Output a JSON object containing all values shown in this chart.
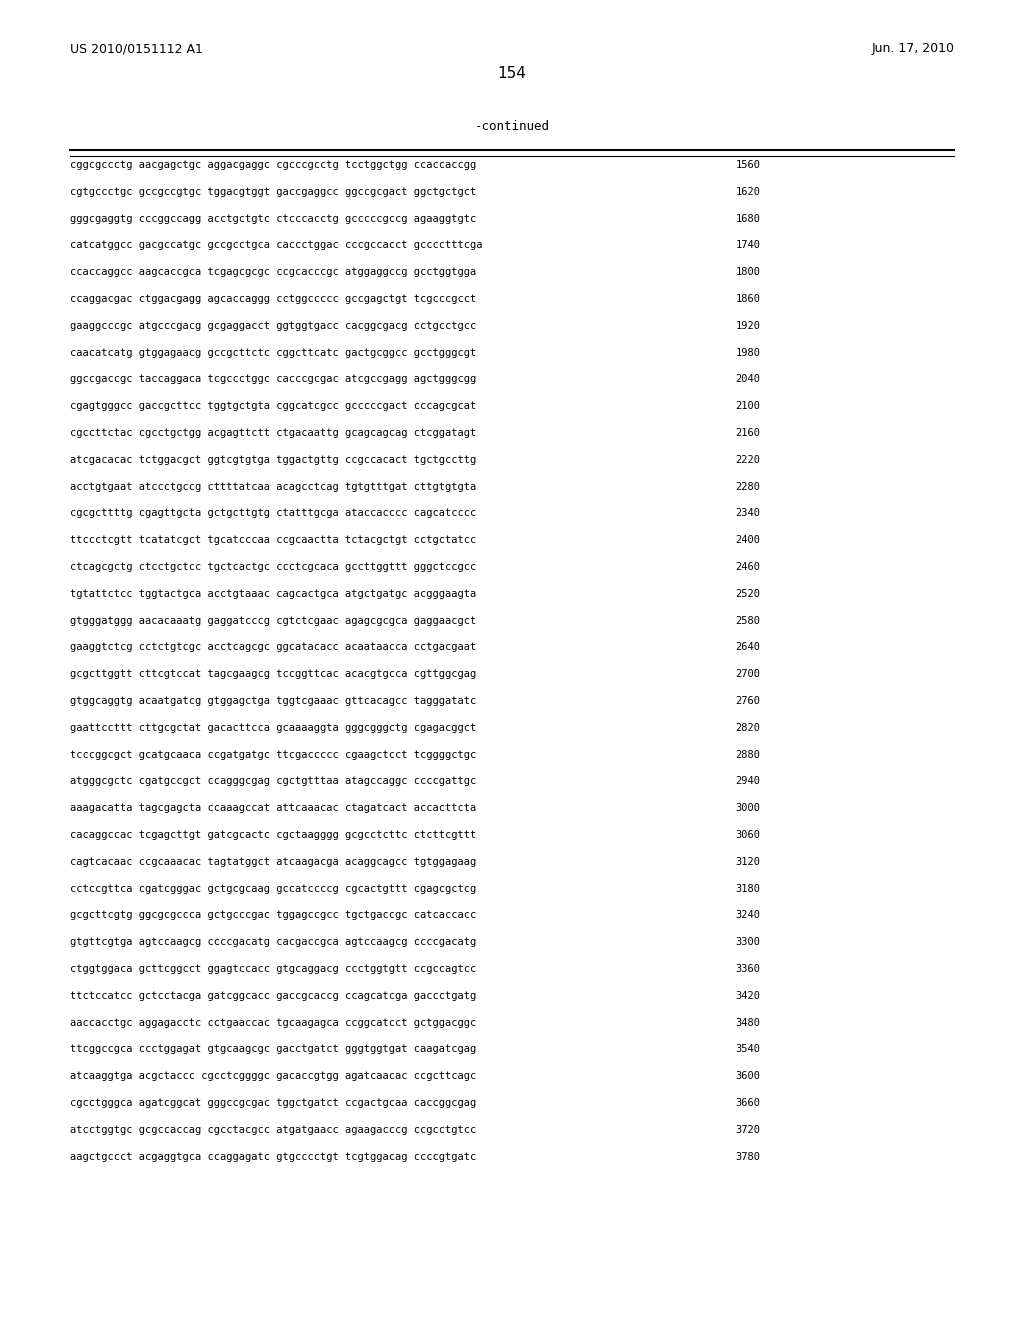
{
  "header_left": "US 2010/0151112 A1",
  "header_right": "Jun. 17, 2010",
  "page_number": "154",
  "continued_label": "-continued",
  "background_color": "#ffffff",
  "text_color": "#000000",
  "sequence_lines": [
    {
      "seq": "cggcgccctg aacgagctgc aggacgaggc cgcccgcctg tcctggctgg ccaccaccgg",
      "num": "1560"
    },
    {
      "seq": "cgtgccctgc gccgccgtgc tggacgtggt gaccgaggcc ggccgcgact ggctgctgct",
      "num": "1620"
    },
    {
      "seq": "gggcgaggtg cccggccagg acctgctgtc ctcccacctg gcccccgccg agaaggtgtc",
      "num": "1680"
    },
    {
      "seq": "catcatggcc gacgccatgc gccgcctgca caccctggac cccgccacct gcccctttcga",
      "num": "1740"
    },
    {
      "seq": "ccaccaggcc aagcaccgca tcgagcgcgc ccgcacccgc atggaggccg gcctggtgga",
      "num": "1800"
    },
    {
      "seq": "ccaggacgac ctggacgagg agcaccaggg cctggccccc gccgagctgt tcgcccgcct",
      "num": "1860"
    },
    {
      "seq": "gaaggcccgc atgcccgacg gcgaggacct ggtggtgacc cacggcgacg cctgcctgcc",
      "num": "1920"
    },
    {
      "seq": "caacatcatg gtggagaacg gccgcttctc cggcttcatc gactgcggcc gcctgggcgt",
      "num": "1980"
    },
    {
      "seq": "ggccgaccgc taccaggaca tcgccctggc cacccgcgac atcgccgagg agctgggcgg",
      "num": "2040"
    },
    {
      "seq": "cgagtgggcc gaccgcttcc tggtgctgta cggcatcgcc gcccccgact cccagcgcat",
      "num": "2100"
    },
    {
      "seq": "cgccttctac cgcctgctgg acgagttctt ctgacaattg gcagcagcag ctcggatagt",
      "num": "2160"
    },
    {
      "seq": "atcgacacac tctggacgct ggtcgtgtga tggactgttg ccgccacact tgctgccttg",
      "num": "2220"
    },
    {
      "seq": "acctgtgaat atccctgccg cttttatcaa acagcctcag tgtgtttgat cttgtgtgta",
      "num": "2280"
    },
    {
      "seq": "cgcgcttttg cgagttgcta gctgcttgtg ctatttgcga ataccacccc cagcatcccc",
      "num": "2340"
    },
    {
      "seq": "ttccctcgtt tcatatcgct tgcatcccaa ccgcaactta tctacgctgt cctgctatcc",
      "num": "2400"
    },
    {
      "seq": "ctcagcgctg ctcctgctcc tgctcactgc ccctcgcaca gccttggttt gggctccgcc",
      "num": "2460"
    },
    {
      "seq": "tgtattctcc tggtactgca acctgtaaac cagcactgca atgctgatgc acgggaagta",
      "num": "2520"
    },
    {
      "seq": "gtgggatggg aacacaaatg gaggatcccg cgtctcgaac agagcgcgca gaggaacgct",
      "num": "2580"
    },
    {
      "seq": "gaaggtctcg cctctgtcgc acctcagcgc ggcatacacc acaataacca cctgacgaat",
      "num": "2640"
    },
    {
      "seq": "gcgcttggtt cttcgtccat tagcgaagcg tccggttcac acacgtgcca cgttggcgag",
      "num": "2700"
    },
    {
      "seq": "gtggcaggtg acaatgatcg gtggagctga tggtcgaaac gttcacagcc tagggatatc",
      "num": "2760"
    },
    {
      "seq": "gaattccttt cttgcgctat gacacttcca gcaaaaggta gggcgggctg cgagacggct",
      "num": "2820"
    },
    {
      "seq": "tcccggcgct gcatgcaaca ccgatgatgc ttcgaccccc cgaagctcct tcggggctgc",
      "num": "2880"
    },
    {
      "seq": "atgggcgctc cgatgccgct ccagggcgag cgctgtttaa atagccaggc ccccgattgc",
      "num": "2940"
    },
    {
      "seq": "aaagacatta tagcgagcta ccaaagccat attcaaacac ctagatcact accacttcta",
      "num": "3000"
    },
    {
      "seq": "cacaggccac tcgagcttgt gatcgcactc cgctaagggg gcgcctcttc ctcttcgttt",
      "num": "3060"
    },
    {
      "seq": "cagtcacaac ccgcaaacac tagtatggct atcaagacga acaggcagcc tgtggagaag",
      "num": "3120"
    },
    {
      "seq": "cctccgttca cgatcgggac gctgcgcaag gccatccccg cgcactgttt cgagcgctcg",
      "num": "3180"
    },
    {
      "seq": "gcgcttcgtg ggcgcgccca gctgcccgac tggagccgcc tgctgaccgc catcaccacc",
      "num": "3240"
    },
    {
      "seq": "gtgttcgtga agtccaagcg ccccgacatg cacgaccgca agtccaagcg ccccgacatg",
      "num": "3300"
    },
    {
      "seq": "ctggtggaca gcttcggcct ggagtccacc gtgcaggacg ccctggtgtt ccgccagtcc",
      "num": "3360"
    },
    {
      "seq": "ttctccatcc gctcctacga gatcggcacc gaccgcaccg ccagcatcga gaccctgatg",
      "num": "3420"
    },
    {
      "seq": "aaccacctgc aggagacctc cctgaaccac tgcaagagca ccggcatcct gctggacggc",
      "num": "3480"
    },
    {
      "seq": "ttcggccgca ccctggagat gtgcaagcgc gacctgatct gggtggtgat caagatcgag",
      "num": "3540"
    },
    {
      "seq": "atcaaggtga acgctaccc cgcctcggggc gacaccgtgg agatcaacac ccgcttcagc",
      "num": "3600"
    },
    {
      "seq": "cgcctgggca agatcggcat gggccgcgac tggctgatct ccgactgcaa caccggcgag",
      "num": "3660"
    },
    {
      "seq": "atcctggtgc gcgccaccag cgcctacgcc atgatgaacc agaagacccg ccgcctgtcc",
      "num": "3720"
    },
    {
      "seq": "aagctgccct acgaggtgca ccaggagatc gtgcccctgt tcgtggacag ccccgtgatc",
      "num": "3780"
    }
  ]
}
